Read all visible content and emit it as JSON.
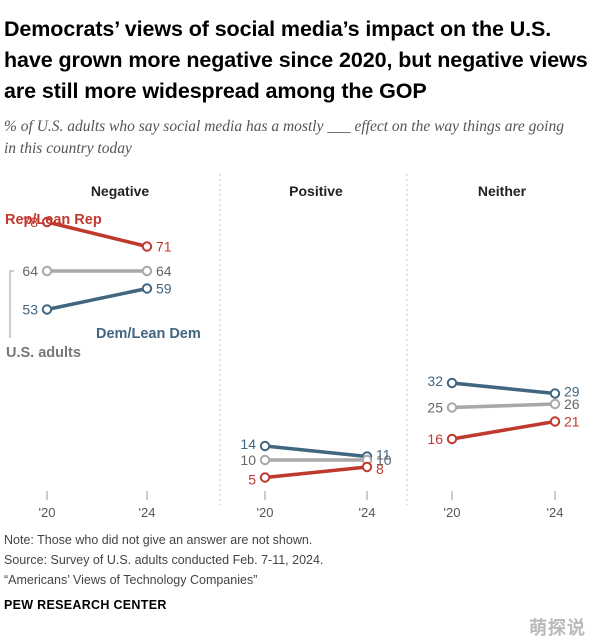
{
  "title": "Democrats’ views of social media’s impact on the U.S. have grown more negative since 2020, but negative views are still more widespread among the GOP",
  "subtitle": "% of U.S. adults who say social media has a mostly ___ effect on the way things are going in this country today",
  "chart_data": {
    "type": "line",
    "x": [
      "'20",
      "'24"
    ],
    "panels": [
      {
        "title": "Negative",
        "series": [
          {
            "name": "Rep/Lean Rep",
            "values": [
              78,
              71
            ],
            "color": "#c0392f"
          },
          {
            "name": "U.S. adults",
            "values": [
              64,
              64
            ],
            "color": "#a8a8a8"
          },
          {
            "name": "Dem/Lean Dem",
            "values": [
              53,
              59
            ],
            "color": "#416680"
          }
        ],
        "labels": {
          "Rep/Lean Rep": "Rep/Lean Rep",
          "U.S. adults": "U.S. adults",
          "Dem/Lean Dem": "Dem/Lean Dem"
        }
      },
      {
        "title": "Positive",
        "series": [
          {
            "name": "Dem/Lean Dem",
            "values": [
              14,
              11
            ],
            "color": "#416680"
          },
          {
            "name": "U.S. adults",
            "values": [
              10,
              10
            ],
            "color": "#a8a8a8"
          },
          {
            "name": "Rep/Lean Rep",
            "values": [
              5,
              8
            ],
            "color": "#c0392f"
          }
        ]
      },
      {
        "title": "Neither",
        "series": [
          {
            "name": "Dem/Lean Dem",
            "values": [
              32,
              29
            ],
            "color": "#416680"
          },
          {
            "name": "U.S. adults",
            "values": [
              25,
              26
            ],
            "color": "#a8a8a8"
          },
          {
            "name": "Rep/Lean Rep",
            "values": [
              16,
              21
            ],
            "color": "#c0392f"
          }
        ]
      }
    ],
    "ylim": [
      0,
      100
    ],
    "grid": false
  },
  "footer": {
    "note": "Note: Those who did not give an answer are not shown.",
    "source": "Source: Survey of U.S. adults conducted Feb. 7-11, 2024.",
    "report": "“Americans’ Views of Technology Companies”",
    "brand": "PEW RESEARCH CENTER"
  },
  "watermark": "萌探说"
}
